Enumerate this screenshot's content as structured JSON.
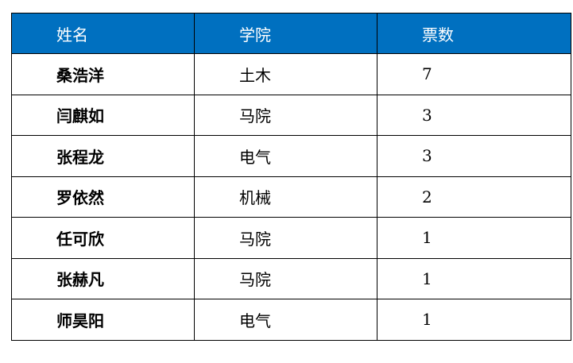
{
  "header": {
    "name": "姓名",
    "college": "学院",
    "votes": "票数"
  },
  "header_color": "#0070C0",
  "rows": [
    {
      "name": "桑浩洋",
      "college": "土木",
      "votes": "7"
    },
    {
      "name": "闫麒如",
      "college": "马院",
      "votes": "3"
    },
    {
      "name": "张程龙",
      "college": "电气",
      "votes": "3"
    },
    {
      "name": "罗依然",
      "college": "机械",
      "votes": "2"
    },
    {
      "name": "任可欣",
      "college": "马院",
      "votes": "1"
    },
    {
      "name": "张赫凡",
      "college": "马院",
      "votes": "1"
    },
    {
      "name": "师昊阳",
      "college": "电气",
      "votes": "1"
    }
  ]
}
